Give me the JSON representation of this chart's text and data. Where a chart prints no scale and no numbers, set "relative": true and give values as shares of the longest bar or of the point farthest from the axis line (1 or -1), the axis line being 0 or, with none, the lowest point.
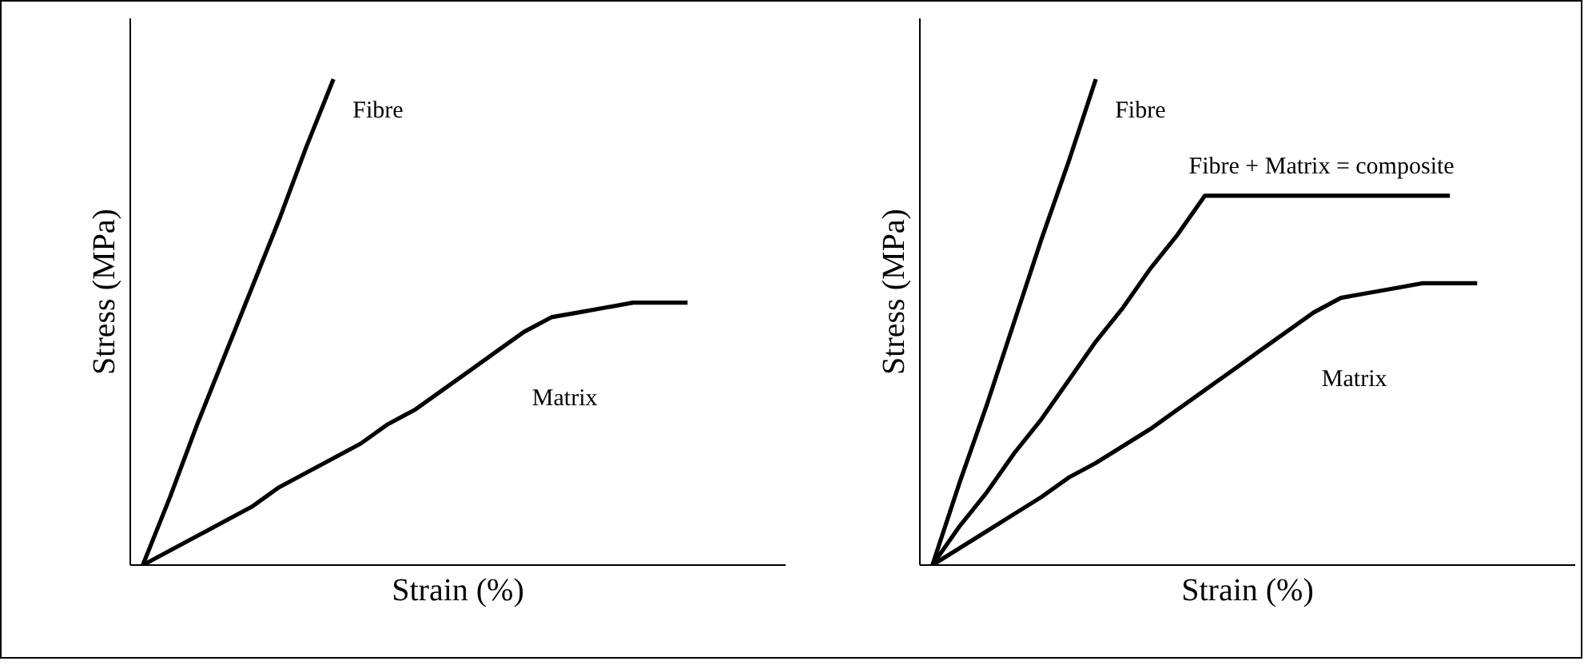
{
  "chart_data": [
    {
      "type": "line",
      "relative": true,
      "xlabel": "Strain (%)",
      "ylabel": "Stress (MPa)",
      "categories": [
        null,
        null,
        null,
        null,
        null,
        null,
        null,
        null,
        null,
        null,
        null,
        null,
        null,
        null,
        null,
        null,
        null,
        null,
        null,
        null,
        null
      ],
      "series": [
        {
          "name": "Fibre",
          "color": "#000000",
          "values": [
            0,
            0.14,
            0.29,
            0.43,
            0.57,
            0.71,
            0.86,
            1,
            null,
            null,
            null,
            null,
            null,
            null,
            null,
            null,
            null,
            null,
            null,
            null,
            null
          ]
        },
        {
          "name": "Matrix",
          "color": "#000000",
          "values": [
            0,
            0.03,
            0.06,
            0.09,
            0.12,
            0.16,
            0.19,
            0.22,
            0.25,
            0.29,
            0.32,
            0.36,
            0.4,
            0.44,
            0.48,
            0.51,
            0.52,
            0.53,
            0.54,
            0.54,
            0.54
          ]
        }
      ]
    },
    {
      "type": "line",
      "relative": true,
      "xlabel": "Strain (%)",
      "ylabel": "Stress (MPa)",
      "categories": [
        null,
        null,
        null,
        null,
        null,
        null,
        null,
        null,
        null,
        null,
        null,
        null,
        null,
        null,
        null,
        null,
        null,
        null,
        null,
        null,
        null
      ],
      "series": [
        {
          "name": "Fibre",
          "color": "#000000",
          "values": [
            0,
            0.17,
            0.33,
            0.5,
            0.67,
            0.83,
            1,
            null,
            null,
            null,
            null,
            null,
            null,
            null,
            null,
            null,
            null,
            null,
            null,
            null,
            null
          ]
        },
        {
          "name": "Fibre + Matrix = composite",
          "color": "#000000",
          "values": [
            0,
            0.08,
            0.15,
            0.23,
            0.3,
            0.38,
            0.46,
            0.53,
            0.61,
            0.68,
            0.76,
            0.76,
            0.76,
            0.76,
            0.76,
            0.76,
            0.76,
            0.76,
            0.76,
            0.76,
            null
          ]
        },
        {
          "name": "Matrix",
          "color": "#000000",
          "values": [
            0,
            0.035,
            0.07,
            0.105,
            0.14,
            0.18,
            0.21,
            0.245,
            0.28,
            0.32,
            0.36,
            0.4,
            0.44,
            0.48,
            0.52,
            0.55,
            0.56,
            0.57,
            0.58,
            0.58,
            0.58
          ]
        }
      ]
    }
  ]
}
